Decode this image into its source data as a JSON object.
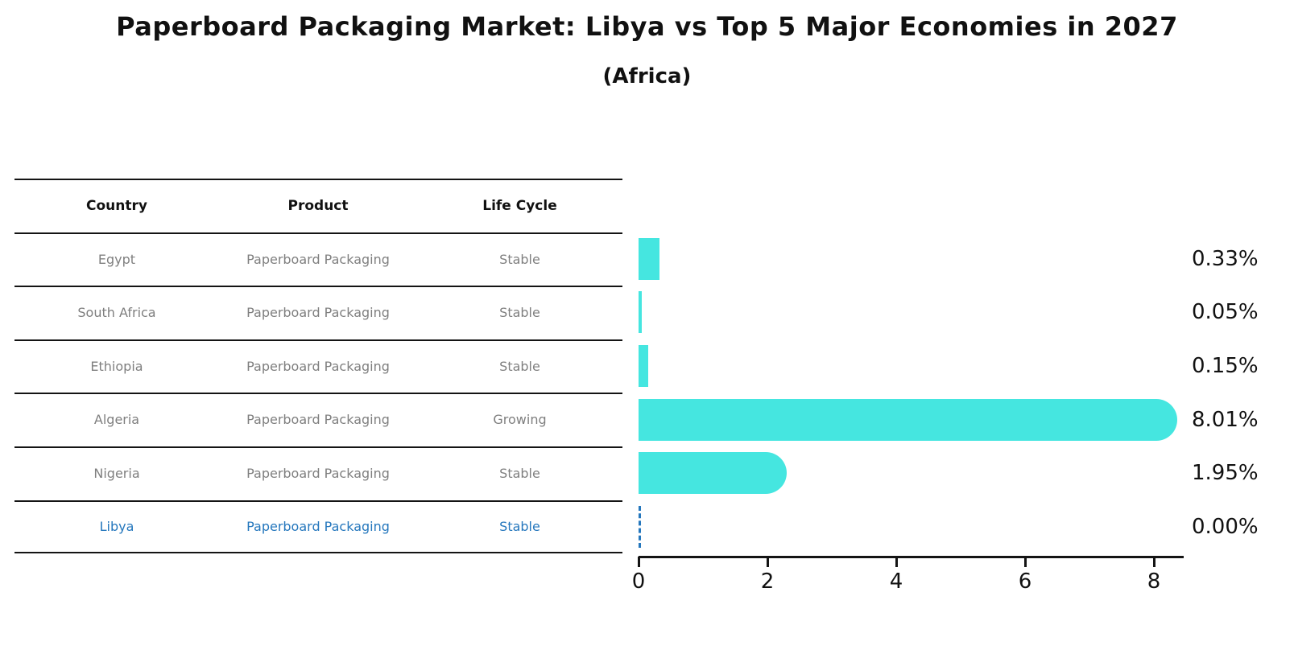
{
  "title": "Paperboard Packaging Market: Libya vs Top 5 Major Economies in 2027",
  "subtitle": "(Africa)",
  "table": {
    "headers": [
      "Country",
      "Product",
      "Life Cycle"
    ],
    "rows": [
      {
        "country": "Egypt",
        "product": "Paperboard Packaging",
        "life_cycle": "Stable"
      },
      {
        "country": "South Africa",
        "product": "Paperboard Packaging",
        "life_cycle": "Stable"
      },
      {
        "country": "Ethiopia",
        "product": "Paperboard Packaging",
        "life_cycle": "Stable"
      },
      {
        "country": "Algeria",
        "product": "Paperboard Packaging",
        "life_cycle": "Growing"
      },
      {
        "country": "Nigeria",
        "product": "Paperboard Packaging",
        "life_cycle": "Stable"
      },
      {
        "country": "Libya",
        "product": "Paperboard Packaging",
        "life_cycle": "Stable",
        "highlighted": true
      }
    ]
  },
  "chart_data": {
    "type": "bar",
    "orientation": "horizontal",
    "categories": [
      "Egypt",
      "South Africa",
      "Ethiopia",
      "Algeria",
      "Nigeria",
      "Libya"
    ],
    "values": [
      0.33,
      0.05,
      0.15,
      8.01,
      1.95,
      0.0
    ],
    "value_labels": [
      "0.33%",
      "0.05%",
      "0.15%",
      "8.01%",
      "1.95%",
      "0.00%"
    ],
    "xticks": [
      "0",
      "2",
      "4",
      "6",
      "8"
    ],
    "xlim": [
      0,
      8.5
    ],
    "xlabel": "",
    "ylabel": "",
    "grid": false,
    "legend": false,
    "highlighted_category": "Libya",
    "highlight_style": "dashed zero-width bar"
  },
  "colors": {
    "bar_fill": "#45E6E0",
    "highlight_blue": "#2577BD",
    "row_text": "#7F7F7F",
    "ink": "#111111"
  }
}
